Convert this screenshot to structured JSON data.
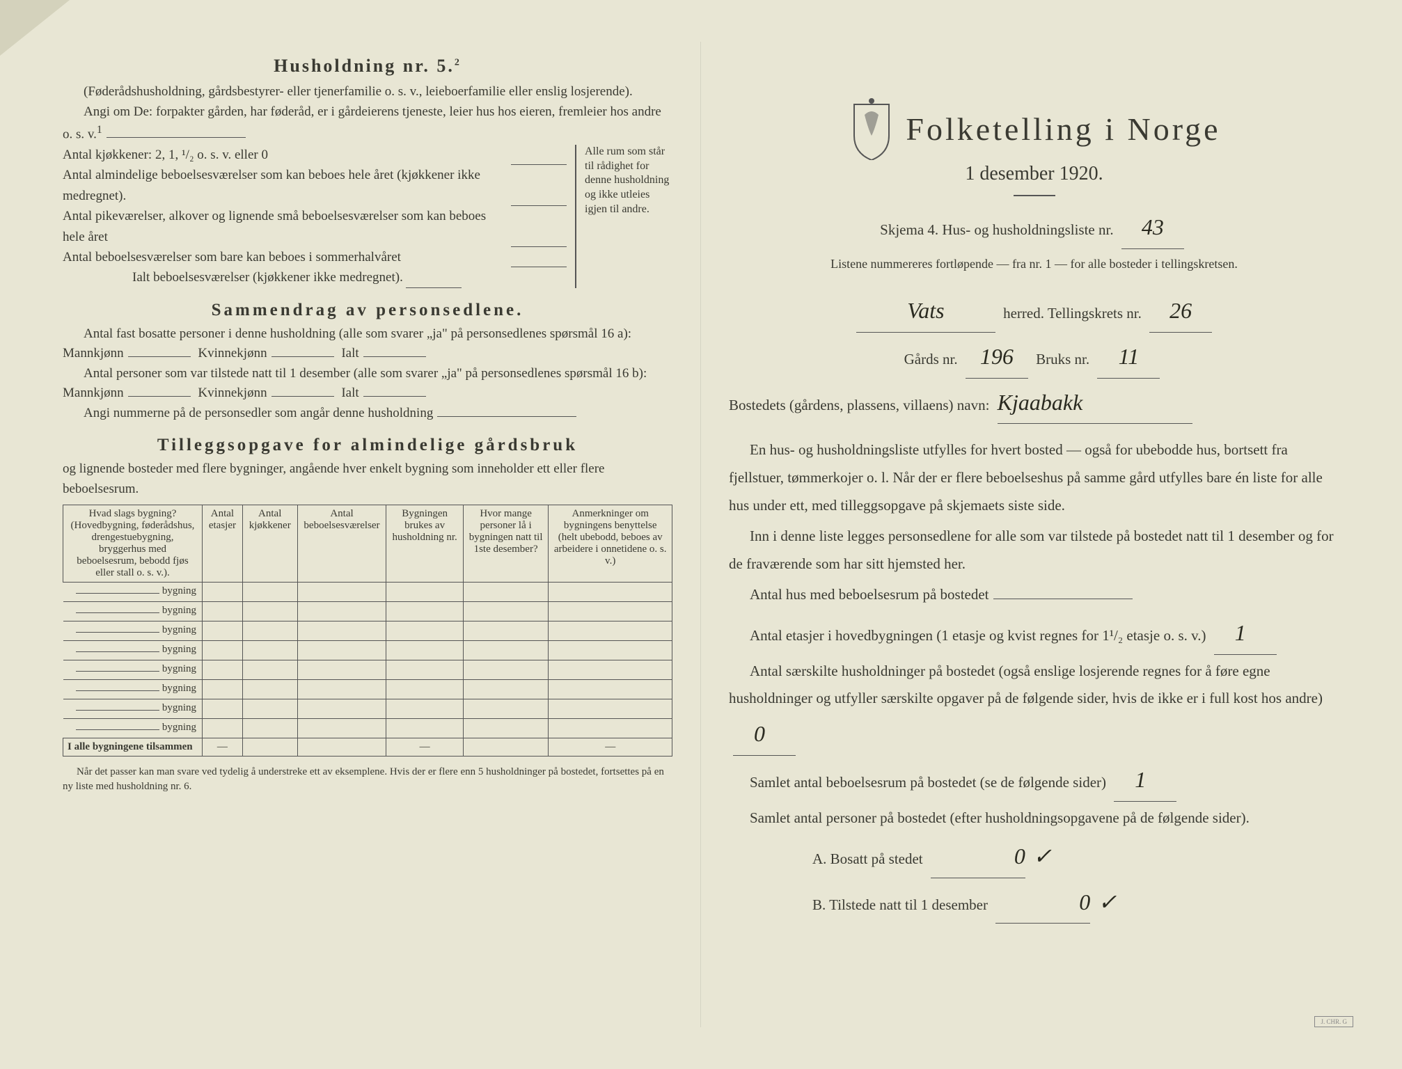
{
  "left": {
    "heading": "Husholdning nr. 5.",
    "heading_sup": "2",
    "intro1": "(Føderådshusholdning, gårdsbestyrer- eller tjenerfamilie o. s. v., leieboerfamilie eller enslig losjerende).",
    "intro2": "Angi om De:  forpakter gården, har føderåd, er i gårdeierens tjeneste, leier hus hos eieren, fremleier hos andre o. s. v.",
    "intro2_sup": "1",
    "kitchens_label": "Antal kjøkkener: 2, 1, ¹/₂ o. s. v. eller 0",
    "rooms1": "Antal almindelige beboelsesværelser som kan beboes hele året (kjøkkener ikke medregnet).",
    "rooms2": "Antal pikeværelser, alkover og lignende små beboelsesværelser som kan beboes hele året",
    "rooms3": "Antal beboelsesværelser som bare kan beboes i sommerhalvåret",
    "rooms_total": "Ialt beboelsesværelser  (kjøkkener ikke medregnet).",
    "brace_note": "Alle rum som står til rådighet for denne husholdning og ikke utleies igjen til andre.",
    "summary_title": "Sammendrag av personsedlene.",
    "summary1a": "Antal fast bosatte personer i denne husholdning (alle som svarer „ja\" på personsedlenes spørsmål 16 a): Mannkjønn",
    "summary1b": "Kvinnekjønn",
    "summary1c": "Ialt",
    "summary2a": "Antal personer som var tilstede natt til 1 desember (alle som svarer „ja\" på personsedlenes spørsmål 16 b): Mannkjønn",
    "summary3": "Angi nummerne på de personsedler som angår denne husholdning",
    "tillegg_title": "Tilleggsopgave for almindelige gårdsbruk",
    "tillegg_sub": "og lignende bosteder med flere bygninger, angående hver enkelt bygning som inneholder ett eller flere beboelsesrum.",
    "table": {
      "headers": [
        "Hvad slags bygning?\n(Hovedbygning, føderådshus, drengestuebygning, bryggerhus med beboelsesrum, bebodd fjøs eller stall o. s. v.).",
        "Antal etasjer",
        "Antal kjøkkener",
        "Antal beboelsesværelser",
        "Bygningen brukes av husholdning nr.",
        "Hvor mange personer lå i bygningen natt til 1ste desember?",
        "Anmerkninger om bygningens benyttelse (helt ubebodd, beboes av arbeidere i onnetidene o. s. v.)"
      ],
      "row_label": "bygning",
      "row_count": 8,
      "total_label": "I alle bygningene tilsammen"
    },
    "footnote": "Når det passer kan man svare ved tydelig å understreke ett av eksemplene.\nHvis der er flere enn 5 husholdninger på bostedet, fortsettes på en ny liste med husholdning nr. 6."
  },
  "right": {
    "title": "Folketelling  i  Norge",
    "date": "1 desember 1920.",
    "skjema_line": "Skjema 4.   Hus- og husholdningsliste nr.",
    "skjema_nr": "43",
    "listene": "Listene nummereres fortløpende — fra nr. 1 — for alle bosteder i tellingskretsen.",
    "herred_value": "Vats",
    "herred_label": "herred.   Tellingskrets nr.",
    "krets_nr": "26",
    "gards_label": "Gårds nr.",
    "gards_nr": "196",
    "bruks_label": "Bruks nr.",
    "bruks_nr": "11",
    "bosted_label": "Bostedets (gårdens, plassens, villaens) navn:",
    "bosted_value": "Kjaabakk",
    "para1": "En hus- og husholdningsliste utfylles for hvert bosted — også for ubebodde hus, bortsett fra fjellstuer, tømmerkojer o. l.  Når der er flere beboelseshus på samme gård utfylles bare én liste for alle hus under ett, med tilleggsopgave på skjemaets siste side.",
    "para2": "Inn i denne liste legges personsedlene for alle som var tilstede på bostedet natt til 1 desember og for de fraværende som har sitt hjemsted her.",
    "q1": "Antal hus med beboelsesrum på bostedet",
    "q2a": "Antal etasjer i hovedbygningen (1 etasje og kvist regnes for 1¹/₂ etasje o. s. v.)",
    "q2_val": "1",
    "q3": "Antal særskilte husholdninger på bostedet (også enslige losjerende regnes for å føre egne husholdninger og utfyller særskilte opgaver på de følgende sider, hvis de ikke er i full kost hos andre)",
    "q3_val": "0",
    "q4": "Samlet antal beboelsesrum på bostedet (se de følgende sider)",
    "q4_val": "1",
    "q5": "Samlet antal personer på bostedet (efter husholdningsopgavene på de følgende sider).",
    "qA": "A.  Bosatt på stedet",
    "qA_val": "0",
    "qB": "B.  Tilstede natt til 1 desember",
    "qB_val": "0",
    "check": "✓"
  },
  "colors": {
    "paper": "#e8e6d4",
    "ink": "#3a3a32",
    "handwriting": "#2a2a20"
  }
}
